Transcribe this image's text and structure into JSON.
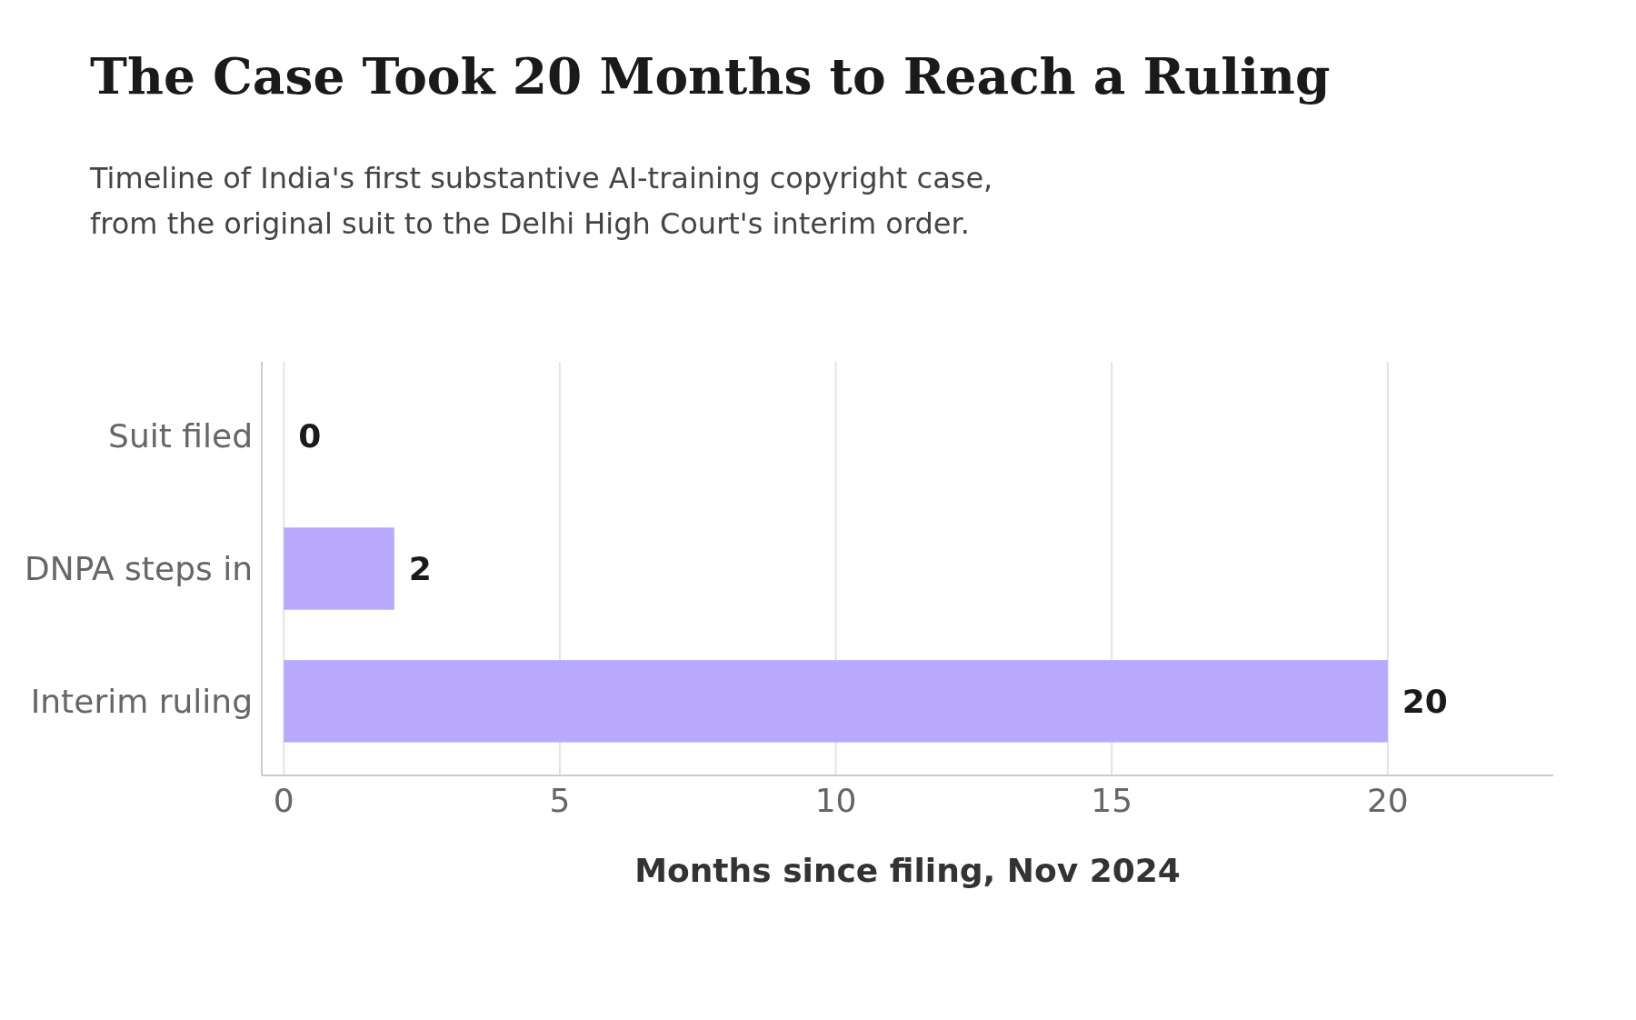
{
  "chart_data": {
    "type": "bar",
    "orientation": "horizontal",
    "title": "The Case Took 20 Months to Reach a Ruling",
    "subtitle": "Timeline of India's first substantive AI-training copyright case, from the original suit to the Delhi High Court's interim order.",
    "xlabel": "Months since filing, Nov 2024",
    "categories": [
      "Suit filed",
      "DNPA steps in",
      "Interim ruling"
    ],
    "values": [
      0,
      2,
      20
    ],
    "color": "#b8a9fc",
    "xlim": [
      -0.4,
      23
    ],
    "xticks": [
      0,
      5,
      10,
      15,
      20
    ],
    "grid": "x",
    "data_labels": true
  }
}
